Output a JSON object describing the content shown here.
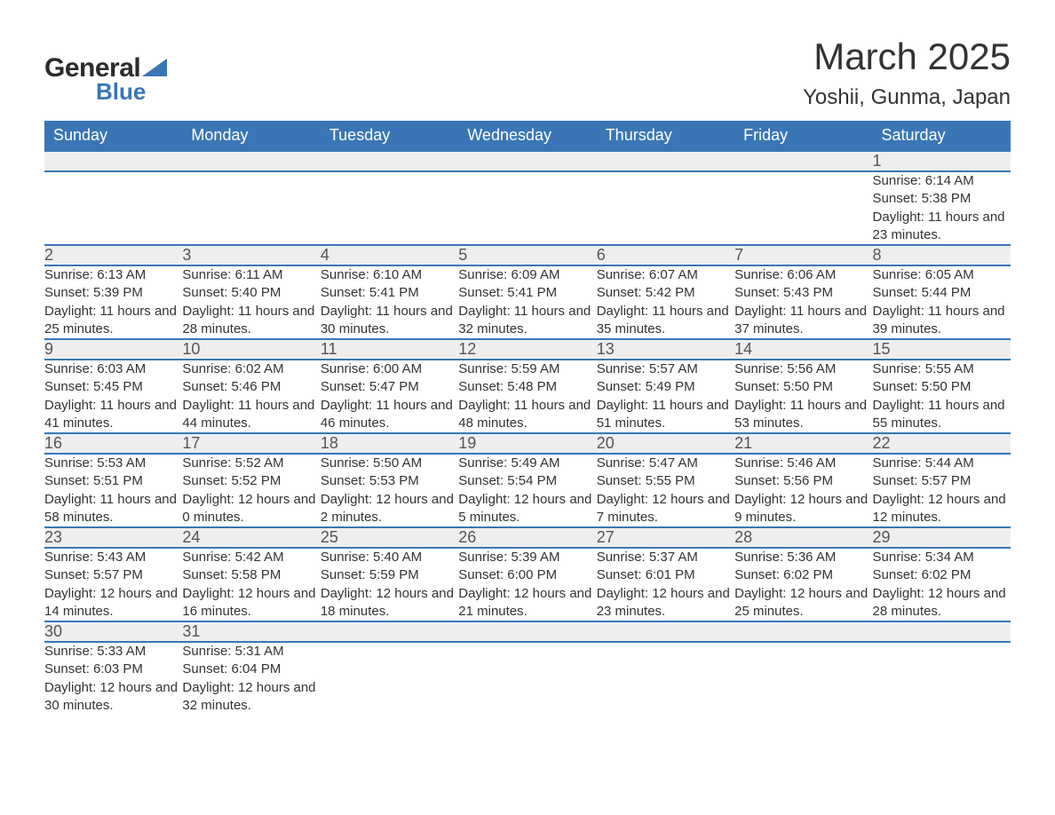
{
  "brand": {
    "name1": "General",
    "name2": "Blue",
    "accent": "#3a76b5"
  },
  "title": "March 2025",
  "location": "Yoshii, Gunma, Japan",
  "day_headers": [
    "Sunday",
    "Monday",
    "Tuesday",
    "Wednesday",
    "Thursday",
    "Friday",
    "Saturday"
  ],
  "style": {
    "header_bg": "#3a76b5",
    "header_fg": "#ffffff",
    "row_border": "#3a76b5",
    "daynum_bg": "#eeeeee",
    "body_bg": "#ffffff",
    "text_color": "#333333",
    "title_fontsize": 42,
    "location_fontsize": 24,
    "header_fontsize": 18,
    "daynum_fontsize": 18,
    "detail_fontsize": 15
  },
  "weeks": [
    [
      null,
      null,
      null,
      null,
      null,
      null,
      {
        "n": "1",
        "sunrise": "6:14 AM",
        "sunset": "5:38 PM",
        "day_h": "11",
        "day_m": "23"
      }
    ],
    [
      {
        "n": "2",
        "sunrise": "6:13 AM",
        "sunset": "5:39 PM",
        "day_h": "11",
        "day_m": "25"
      },
      {
        "n": "3",
        "sunrise": "6:11 AM",
        "sunset": "5:40 PM",
        "day_h": "11",
        "day_m": "28"
      },
      {
        "n": "4",
        "sunrise": "6:10 AM",
        "sunset": "5:41 PM",
        "day_h": "11",
        "day_m": "30"
      },
      {
        "n": "5",
        "sunrise": "6:09 AM",
        "sunset": "5:41 PM",
        "day_h": "11",
        "day_m": "32"
      },
      {
        "n": "6",
        "sunrise": "6:07 AM",
        "sunset": "5:42 PM",
        "day_h": "11",
        "day_m": "35"
      },
      {
        "n": "7",
        "sunrise": "6:06 AM",
        "sunset": "5:43 PM",
        "day_h": "11",
        "day_m": "37"
      },
      {
        "n": "8",
        "sunrise": "6:05 AM",
        "sunset": "5:44 PM",
        "day_h": "11",
        "day_m": "39"
      }
    ],
    [
      {
        "n": "9",
        "sunrise": "6:03 AM",
        "sunset": "5:45 PM",
        "day_h": "11",
        "day_m": "41"
      },
      {
        "n": "10",
        "sunrise": "6:02 AM",
        "sunset": "5:46 PM",
        "day_h": "11",
        "day_m": "44"
      },
      {
        "n": "11",
        "sunrise": "6:00 AM",
        "sunset": "5:47 PM",
        "day_h": "11",
        "day_m": "46"
      },
      {
        "n": "12",
        "sunrise": "5:59 AM",
        "sunset": "5:48 PM",
        "day_h": "11",
        "day_m": "48"
      },
      {
        "n": "13",
        "sunrise": "5:57 AM",
        "sunset": "5:49 PM",
        "day_h": "11",
        "day_m": "51"
      },
      {
        "n": "14",
        "sunrise": "5:56 AM",
        "sunset": "5:50 PM",
        "day_h": "11",
        "day_m": "53"
      },
      {
        "n": "15",
        "sunrise": "5:55 AM",
        "sunset": "5:50 PM",
        "day_h": "11",
        "day_m": "55"
      }
    ],
    [
      {
        "n": "16",
        "sunrise": "5:53 AM",
        "sunset": "5:51 PM",
        "day_h": "11",
        "day_m": "58"
      },
      {
        "n": "17",
        "sunrise": "5:52 AM",
        "sunset": "5:52 PM",
        "day_h": "12",
        "day_m": "0"
      },
      {
        "n": "18",
        "sunrise": "5:50 AM",
        "sunset": "5:53 PM",
        "day_h": "12",
        "day_m": "2"
      },
      {
        "n": "19",
        "sunrise": "5:49 AM",
        "sunset": "5:54 PM",
        "day_h": "12",
        "day_m": "5"
      },
      {
        "n": "20",
        "sunrise": "5:47 AM",
        "sunset": "5:55 PM",
        "day_h": "12",
        "day_m": "7"
      },
      {
        "n": "21",
        "sunrise": "5:46 AM",
        "sunset": "5:56 PM",
        "day_h": "12",
        "day_m": "9"
      },
      {
        "n": "22",
        "sunrise": "5:44 AM",
        "sunset": "5:57 PM",
        "day_h": "12",
        "day_m": "12"
      }
    ],
    [
      {
        "n": "23",
        "sunrise": "5:43 AM",
        "sunset": "5:57 PM",
        "day_h": "12",
        "day_m": "14"
      },
      {
        "n": "24",
        "sunrise": "5:42 AM",
        "sunset": "5:58 PM",
        "day_h": "12",
        "day_m": "16"
      },
      {
        "n": "25",
        "sunrise": "5:40 AM",
        "sunset": "5:59 PM",
        "day_h": "12",
        "day_m": "18"
      },
      {
        "n": "26",
        "sunrise": "5:39 AM",
        "sunset": "6:00 PM",
        "day_h": "12",
        "day_m": "21"
      },
      {
        "n": "27",
        "sunrise": "5:37 AM",
        "sunset": "6:01 PM",
        "day_h": "12",
        "day_m": "23"
      },
      {
        "n": "28",
        "sunrise": "5:36 AM",
        "sunset": "6:02 PM",
        "day_h": "12",
        "day_m": "25"
      },
      {
        "n": "29",
        "sunrise": "5:34 AM",
        "sunset": "6:02 PM",
        "day_h": "12",
        "day_m": "28"
      }
    ],
    [
      {
        "n": "30",
        "sunrise": "5:33 AM",
        "sunset": "6:03 PM",
        "day_h": "12",
        "day_m": "30"
      },
      {
        "n": "31",
        "sunrise": "5:31 AM",
        "sunset": "6:04 PM",
        "day_h": "12",
        "day_m": "32"
      },
      null,
      null,
      null,
      null,
      null
    ]
  ],
  "labels": {
    "sunrise": "Sunrise: ",
    "sunset": "Sunset: ",
    "daylight1": "Daylight: ",
    "daylight2": " hours and ",
    "daylight3": " minutes."
  }
}
